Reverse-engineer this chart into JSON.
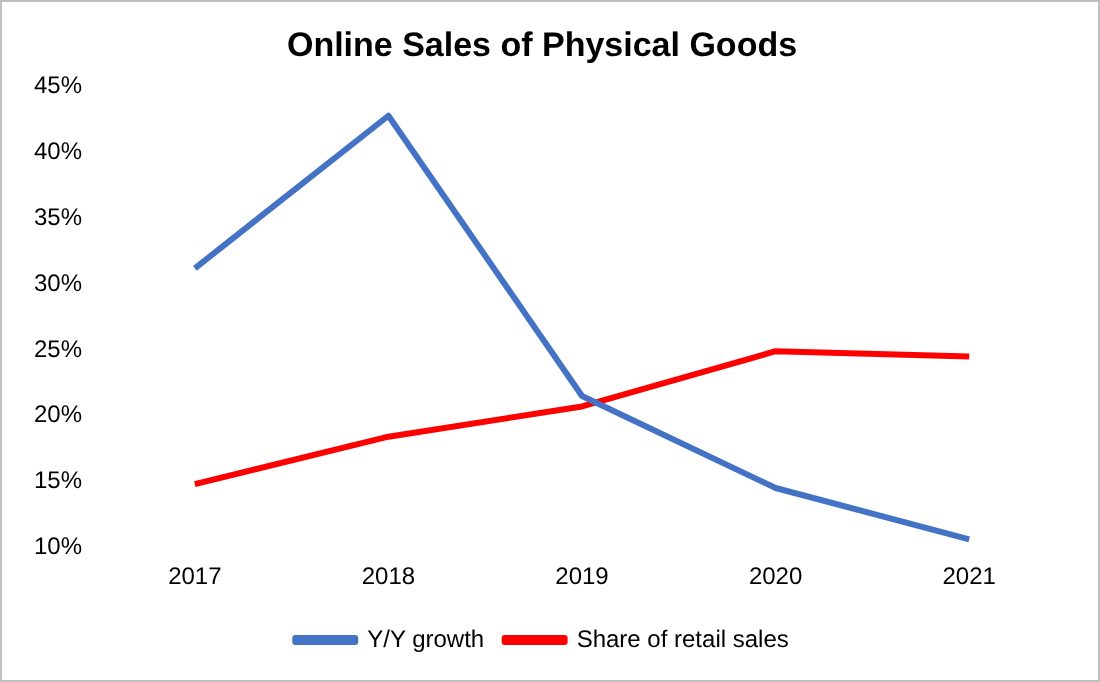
{
  "chart_data": {
    "type": "line",
    "title": "Online Sales of Physical Goods",
    "categories": [
      "2017",
      "2018",
      "2019",
      "2020",
      "2021"
    ],
    "series": [
      {
        "name": "Y/Y growth",
        "color": "#4472c4",
        "values": [
          31.2,
          42.8,
          21.5,
          14.5,
          10.6
        ]
      },
      {
        "name": "Share of retail sales",
        "color": "#ff0000",
        "values": [
          14.8,
          18.4,
          20.7,
          24.9,
          24.5
        ]
      }
    ],
    "ylim": [
      10,
      45
    ],
    "yticks": [
      {
        "value": 10,
        "label": "10%"
      },
      {
        "value": 15,
        "label": "15%"
      },
      {
        "value": 20,
        "label": "20%"
      },
      {
        "value": 25,
        "label": "25%"
      },
      {
        "value": 30,
        "label": "30%"
      },
      {
        "value": 35,
        "label": "35%"
      },
      {
        "value": 40,
        "label": "40%"
      },
      {
        "value": 45,
        "label": "45%"
      }
    ],
    "grid": false,
    "legend": "bottom",
    "marker": "none",
    "line_style": "solid"
  }
}
